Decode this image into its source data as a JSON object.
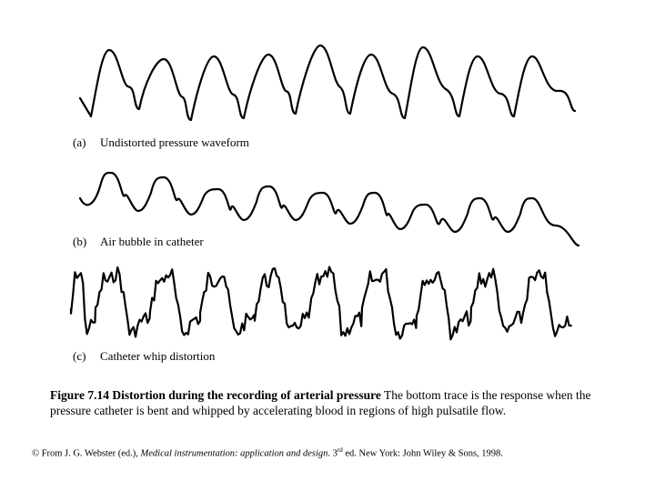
{
  "figure": {
    "panels": [
      {
        "tag": "(a)",
        "label": "Undistorted pressure waveform"
      },
      {
        "tag": "(b)",
        "label": "Air bubble in catheter"
      },
      {
        "tag": "(c)",
        "label": "Catheter whip distortion"
      }
    ]
  },
  "caption": {
    "title": "Figure 7.14 Distortion during the recording of arterial pressure",
    "body": "The bottom trace is the response when the pressure catheter is bent and whipped by accelerating blood in regions of high pulsatile flow."
  },
  "credit": {
    "prefix": "© From J. G. Webster (ed.), ",
    "book": "Medical instrumentation: application and design",
    "edition_num": ". 3",
    "edition_sup": "rd",
    "suffix": " ed. New York: John Wiley & Sons, 1998."
  }
}
